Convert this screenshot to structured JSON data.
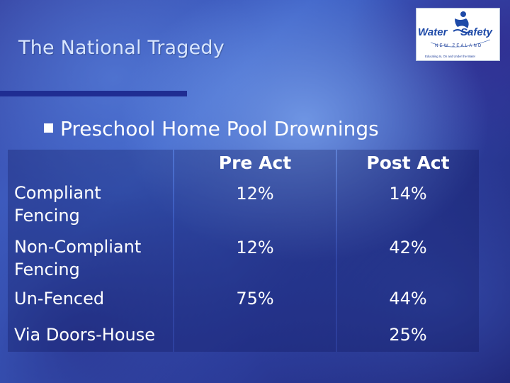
{
  "slide": {
    "title": "The National Tragedy",
    "bullet": "Preschool Home Pool Drownings"
  },
  "logo": {
    "word_left": "Water",
    "word_right": "Safety",
    "country": "NEW ZEALAND",
    "tagline": "Educating In, On and Under the Water",
    "colors": {
      "blue": "#1e4aa8",
      "accent": "#1a3a96"
    }
  },
  "table": {
    "headers": {
      "pre": "Pre Act",
      "post": "Post Act"
    },
    "rows": [
      {
        "label_lines": [
          "Compliant",
          "Fencing"
        ],
        "pre": "12%",
        "post": "14%"
      },
      {
        "label_lines": [
          "Non-Compliant",
          "Fencing"
        ],
        "pre": "12%",
        "post": "42%"
      },
      {
        "label_lines": [
          "Un-Fenced"
        ],
        "pre": "75%",
        "post": "44%"
      },
      {
        "label_lines": [
          "Via Doors-House"
        ],
        "pre": "",
        "post": "25%"
      }
    ]
  }
}
